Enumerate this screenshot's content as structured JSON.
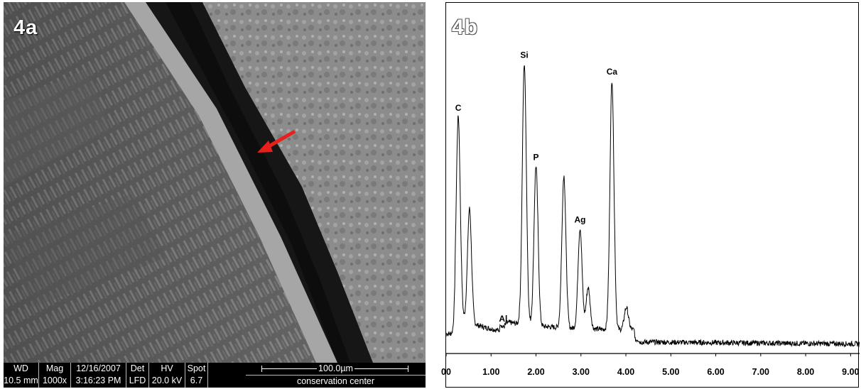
{
  "panel_a": {
    "label": "4a",
    "databar": {
      "headers": [
        "WD",
        "Mag",
        "12/16/2007",
        "Det",
        "HV",
        "Spot"
      ],
      "values": [
        "10.5 mm",
        "1000x",
        "3:16:23 PM",
        "LFD",
        "20.0 kV",
        "6.7"
      ],
      "scale_label": "100.0µm",
      "footer": "conservation center"
    },
    "arrow_color": "#e8201c"
  },
  "panel_b": {
    "label": "4b"
  },
  "chart_data": {
    "type": "line",
    "title": "",
    "xlabel": "",
    "ylabel": "",
    "xlim": [
      0.0,
      9.2
    ],
    "ylim": [
      0,
      100
    ],
    "grid": false,
    "x_tick_labels": [
      "00",
      "1.00",
      "2.00",
      "3.00",
      "4.00",
      "5.00",
      "6.00",
      "7.00",
      "8.00",
      "9.00"
    ],
    "x_tick_values": [
      0.0,
      1.0,
      2.0,
      3.0,
      4.0,
      5.0,
      6.0,
      7.0,
      8.0,
      9.0
    ],
    "peaks": [
      {
        "label": "C",
        "x": 0.27,
        "y": 72
      },
      {
        "label": "",
        "x": 0.52,
        "y": 44
      },
      {
        "label": "Al",
        "x": 1.27,
        "y": 8
      },
      {
        "label": "Si",
        "x": 1.74,
        "y": 88
      },
      {
        "label": "P",
        "x": 2.0,
        "y": 57
      },
      {
        "label": "",
        "x": 2.62,
        "y": 54
      },
      {
        "label": "Ag",
        "x": 2.98,
        "y": 38
      },
      {
        "label": "",
        "x": 3.16,
        "y": 20
      },
      {
        "label": "Ca",
        "x": 3.69,
        "y": 83
      },
      {
        "label": "",
        "x": 4.01,
        "y": 14
      }
    ],
    "series": [
      {
        "color": "#000000"
      }
    ]
  }
}
